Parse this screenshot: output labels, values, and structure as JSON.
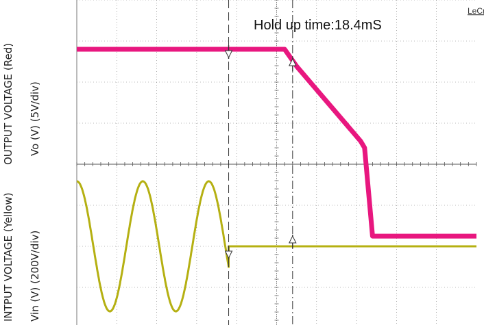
{
  "chart_data": {
    "type": "line",
    "title": "",
    "annotation": "Hold up time:18.4mS",
    "brand": "LeCroy",
    "axis_labels": {
      "upper_line1": "OUTPUT VOLTAGE (Red)",
      "upper_line2": "Vo (V) (5V/div)",
      "lower_line1": "INTPUT VOLTAGE (Yellow)",
      "lower_line2": "Vin (V) (200V/div)"
    },
    "grid": true,
    "divisions": {
      "x": 10,
      "y": 8
    },
    "colors": {
      "output": "#e8177f",
      "input": "#b5b012",
      "grid": "#777777",
      "cursor": "#333333"
    },
    "series": [
      {
        "name": "OUTPUT VOLTAGE (Red)",
        "color": "#e8177f",
        "x_div": [
          0,
          3.9,
          5.2,
          5.5,
          7.1,
          7.2,
          7.4,
          10
        ],
        "y_div": [
          5.7,
          5.7,
          5.7,
          5.2,
          3.0,
          2.8,
          0.2,
          0.2
        ]
      },
      {
        "name": "INTPUT VOLTAGE (Yellow)",
        "color": "#b5b012",
        "x_div": [
          0,
          3.8,
          3.8,
          10
        ],
        "y_div": [
          1.5,
          0.0,
          0.0,
          0.0
        ],
        "waveform": {
          "amplitude_div": 1.65,
          "period_div": 1.65,
          "phase_div": -0.41,
          "end_div": 3.8
        }
      }
    ],
    "cursors": [
      {
        "x_div": 3.8,
        "y_div": 5.7
      },
      {
        "x_div": 5.4,
        "y_div": 5.25
      },
      {
        "x_div": 3.8,
        "y_div": 0.0
      },
      {
        "x_div": 5.4,
        "y_div": 0.0
      }
    ]
  }
}
